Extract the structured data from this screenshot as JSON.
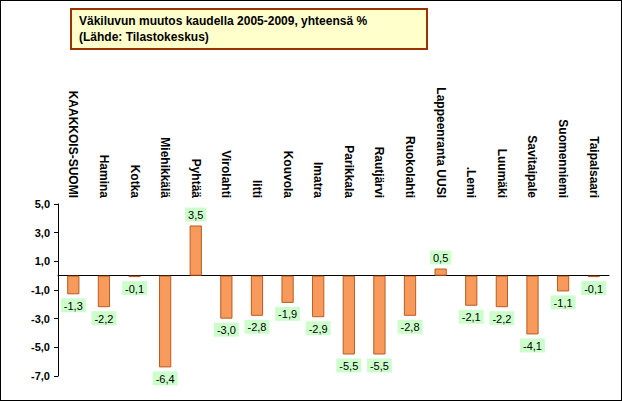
{
  "chart_data": {
    "type": "bar",
    "title": "Väkiluvun muutos kaudella 2005-2009, yhteensä % (Lähde: Tilastokeskus)",
    "categories": [
      "KAAKKOIS-SUOMI",
      "Hamina",
      "Kotka",
      "Miehikkälä",
      "Pyhtää",
      "Virolahti",
      "Iitti",
      "Kouvola",
      "Imatra",
      "Parikkala",
      "Rautjärvi",
      "Ruokolahti",
      "Lappeenranta UUSI",
      ".Lemi",
      "Luumäki",
      "Savitaipale",
      "Suomenniemi",
      "Taipalsaari"
    ],
    "values": [
      -1.3,
      -2.2,
      -0.1,
      -6.4,
      3.5,
      -3.0,
      -2.8,
      -1.9,
      -2.9,
      -5.5,
      -5.5,
      -2.8,
      0.5,
      -2.1,
      -2.2,
      -4.1,
      -1.1,
      -0.1
    ],
    "value_labels": [
      "-1,3",
      "-2,2",
      "-0,1",
      "-6,4",
      "3,5",
      "-3,0",
      "-2,8",
      "-1,9",
      "-2,9",
      "-5,5",
      "-5,5",
      "-2,8",
      "0,5",
      "-2,1",
      "-2,2",
      "-4,1",
      "-1,1",
      "-0,1"
    ],
    "color": "#F79A5C",
    "ylim": [
      -7,
      5
    ],
    "yticks": [
      {
        "value": -7,
        "label": "-7,0"
      },
      {
        "value": -5,
        "label": "-5,0"
      },
      {
        "value": -3,
        "label": "-3,0"
      },
      {
        "value": -1,
        "label": "-1,0"
      },
      {
        "value": 1,
        "label": "1,0"
      },
      {
        "value": 3,
        "label": "3,0"
      },
      {
        "value": 5,
        "label": "5,0"
      }
    ],
    "grid": false,
    "data_labels": true
  }
}
